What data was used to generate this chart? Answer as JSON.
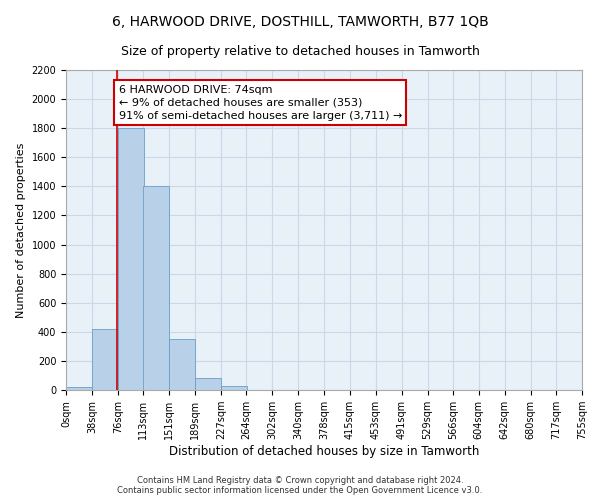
{
  "title": "6, HARWOOD DRIVE, DOSTHILL, TAMWORTH, B77 1QB",
  "subtitle": "Size of property relative to detached houses in Tamworth",
  "xlabel": "Distribution of detached houses by size in Tamworth",
  "ylabel": "Number of detached properties",
  "bar_color": "#b8d0e8",
  "bar_edge_color": "#6a9fc8",
  "grid_color": "#ccd8e8",
  "background_color": "#e8f0f8",
  "property_line_color": "#cc0000",
  "property_line_x": 74,
  "annotation_text": "6 HARWOOD DRIVE: 74sqm\n← 9% of detached houses are smaller (353)\n91% of semi-detached houses are larger (3,711) →",
  "annotation_box_color": "#ffffff",
  "annotation_border_color": "#cc0000",
  "bin_edges": [
    0,
    38,
    76,
    113,
    151,
    189,
    227,
    264,
    302,
    340,
    378,
    415,
    453,
    491,
    529,
    566,
    604,
    642,
    680,
    717,
    755
  ],
  "bin_labels": [
    "0sqm",
    "38sqm",
    "76sqm",
    "113sqm",
    "151sqm",
    "189sqm",
    "227sqm",
    "264sqm",
    "302sqm",
    "340sqm",
    "378sqm",
    "415sqm",
    "453sqm",
    "491sqm",
    "529sqm",
    "566sqm",
    "604sqm",
    "642sqm",
    "680sqm",
    "717sqm",
    "755sqm"
  ],
  "bar_heights": [
    20,
    420,
    1800,
    1400,
    350,
    80,
    25,
    0,
    0,
    0,
    0,
    0,
    0,
    0,
    0,
    0,
    0,
    0,
    0,
    0
  ],
  "ylim": [
    0,
    2200
  ],
  "yticks": [
    0,
    200,
    400,
    600,
    800,
    1000,
    1200,
    1400,
    1600,
    1800,
    2000,
    2200
  ],
  "footer_text": "Contains HM Land Registry data © Crown copyright and database right 2024.\nContains public sector information licensed under the Open Government Licence v3.0.",
  "title_fontsize": 10,
  "subtitle_fontsize": 9,
  "ylabel_fontsize": 8,
  "xlabel_fontsize": 8.5,
  "tick_fontsize": 7,
  "annotation_fontsize": 8,
  "footer_fontsize": 6
}
